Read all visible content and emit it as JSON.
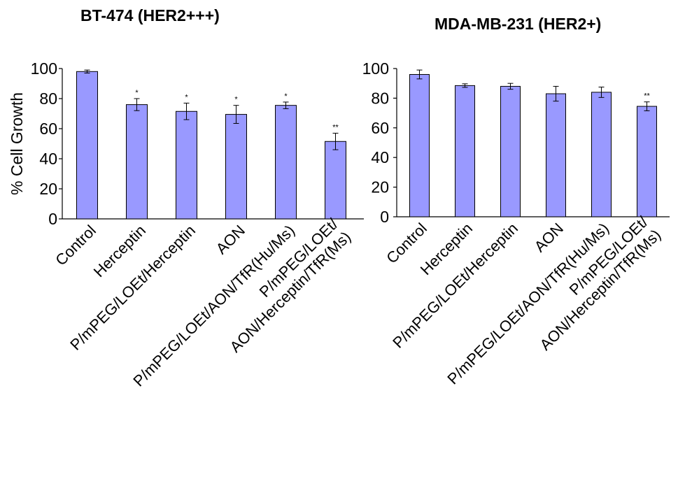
{
  "chart_data": [
    {
      "type": "bar",
      "title": "BT-474 (HER2+++)",
      "ylabel": "% Cell Growth",
      "ylim": [
        0,
        100
      ],
      "yticks": [
        "0",
        "20",
        "40",
        "60",
        "80",
        "100"
      ],
      "categories": [
        [
          "Control"
        ],
        [
          "Herceptin"
        ],
        [
          "P/mPEG/LOEt/Herceptin"
        ],
        [
          "AON"
        ],
        [
          "P/mPEG/LOEt/AON/TfR(Hu/Ms)"
        ],
        [
          "P/mPEG/LOEt/",
          "AON/Herceptin/TfR(Ms)"
        ]
      ],
      "values": [
        98,
        76,
        71.5,
        69.5,
        75.5,
        51.5
      ],
      "errors": [
        1,
        4,
        5.5,
        6,
        2.2,
        5.5
      ],
      "significance": [
        "",
        "*",
        "*",
        "*",
        "*",
        "**"
      ],
      "bar_color": "#9999ff"
    },
    {
      "type": "bar",
      "title": "MDA-MB-231 (HER2+)",
      "ylabel": "",
      "ylim": [
        0,
        100
      ],
      "yticks": [
        "0",
        "20",
        "40",
        "60",
        "80",
        "100"
      ],
      "categories": [
        [
          "Control"
        ],
        [
          "Herceptin"
        ],
        [
          "P/mPEG/LOEt/Herceptin"
        ],
        [
          "AON"
        ],
        [
          "P/mPEG/LOEt/AON/TfR(Hu/Ms)"
        ],
        [
          "P/mPEG/LOEt/",
          "AON/Herceptin/TfR(Ms)"
        ]
      ],
      "values": [
        96,
        88.5,
        88,
        83,
        84,
        74.5
      ],
      "errors": [
        3,
        1.2,
        2,
        5,
        3.5,
        3
      ],
      "significance": [
        "",
        "",
        "",
        "",
        "",
        "**"
      ],
      "bar_color": "#9999ff"
    }
  ]
}
